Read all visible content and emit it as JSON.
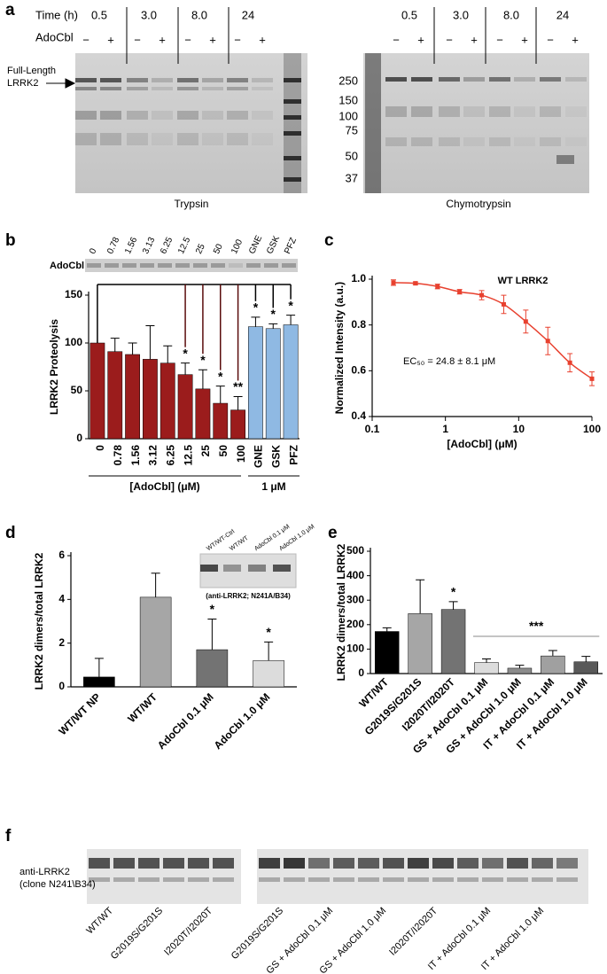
{
  "figure": {
    "panel_labels": [
      "a",
      "b",
      "c",
      "d",
      "e",
      "f"
    ],
    "gel_a": {
      "time_label": "Time (h)",
      "adocbl_label": "AdoCbl",
      "times": [
        "0.5",
        "3.0",
        "8.0",
        "24"
      ],
      "signs": [
        "−",
        "+"
      ],
      "full_length": [
        "Full-Length",
        "LRRK2"
      ],
      "markers": [
        "250",
        "150",
        "100",
        "75",
        "50",
        "37"
      ],
      "enzymes": [
        "Trypsin",
        "Chymotrypsin"
      ]
    },
    "blot_f": {
      "antibody": [
        "anti-LRRK2",
        "(clone N241\\B34)"
      ],
      "left_lanes": [
        "WT/WT",
        "G2019S/G201S",
        "I2020T/I2020T"
      ],
      "right_lanes": [
        "G2019S/G201S",
        "GS + AdoCbl 0.1 μM",
        "GS + AdoCbl 1.0 μM",
        "I2020T/I2020T",
        "IT + AdoCbl 0.1 μM",
        "IT + AdoCbl 1.0 μM"
      ]
    }
  },
  "chart_data": [
    {
      "type": "bar",
      "ylabel": "LRRK2 Proteolysis",
      "categories": [
        "0",
        "0.78",
        "1.56",
        "3.12",
        "6.25",
        "12.5",
        "25",
        "50",
        "100",
        "GNE",
        "GSK",
        "PFZ"
      ],
      "values": [
        100,
        91,
        88,
        83,
        79,
        67,
        52,
        37,
        30,
        117,
        115,
        119
      ],
      "errors": [
        null,
        14,
        12,
        35,
        18,
        12,
        20,
        18,
        14,
        10,
        5,
        10
      ],
      "colors": [
        "#9b1c1c",
        "#9b1c1c",
        "#9b1c1c",
        "#9b1c1c",
        "#9b1c1c",
        "#9b1c1c",
        "#9b1c1c",
        "#9b1c1c",
        "#9b1c1c",
        "#8fb9e3",
        "#8fb9e3",
        "#8fb9e3"
      ],
      "significance": [
        null,
        null,
        null,
        null,
        null,
        "*",
        "*",
        "*",
        "**",
        "*",
        "*",
        "*"
      ],
      "ylim": [
        0,
        150
      ],
      "yticks": [
        0,
        50,
        100,
        150
      ],
      "gel_label": "AdoCbl",
      "gel_lanes": [
        "0",
        "0.78",
        "1.56",
        "3.13",
        "6.25",
        "12.5",
        "25",
        "50",
        "100",
        "GNE",
        "GSK",
        "PFZ"
      ],
      "group_labels": [
        "[AdoCbl] (μM)",
        "1 μM"
      ]
    },
    {
      "type": "scatter",
      "title": "WT LRRK2",
      "annotation": "EC₅₀ = 24.8 ± 8.1 μM",
      "xlabel": "[AdoCbl] (μM)",
      "ylabel": "Normalized Intensity (a.u.)",
      "x": [
        0.195,
        0.39,
        0.78,
        1.56,
        3.125,
        6.25,
        12.5,
        25,
        50,
        100
      ],
      "y": [
        0.985,
        0.982,
        0.968,
        0.945,
        0.93,
        0.89,
        0.815,
        0.73,
        0.635,
        0.565
      ],
      "errors": [
        0.012,
        0.006,
        0.01,
        0.01,
        0.02,
        0.04,
        0.05,
        0.06,
        0.04,
        0.03
      ],
      "color": "#e8412f",
      "xscale": "log",
      "xlim": [
        0.1,
        100
      ],
      "xticks": [
        0.1,
        1,
        10,
        100
      ],
      "ylim": [
        0.4,
        1
      ],
      "yticks": [
        0.4,
        0.6,
        0.8,
        {
          "value": 1,
          "label": "1.0"
        }
      ]
    },
    {
      "type": "bar",
      "ylabel": "LRRK2 dimers/total LRRK2",
      "categories": [
        "WT/WT NP",
        "WT/WT",
        "AdoCbl 0.1 μM",
        "AdoCbl 1.0 μM"
      ],
      "values": [
        0.45,
        4.1,
        1.7,
        1.2
      ],
      "errors": [
        0.85,
        1.1,
        1.4,
        0.85
      ],
      "colors": [
        "#000000",
        "#a6a6a6",
        "#737373",
        "#dcdcdc"
      ],
      "significance": [
        null,
        null,
        "*",
        "*"
      ],
      "ylim": [
        0,
        6
      ],
      "yticks": [
        0,
        2,
        4,
        6
      ],
      "inset_lanes": [
        "WT/WT-Ctrl",
        "WT/WT",
        "AdoCbl 0.1 μM",
        "AdoCbl 1.0 μM"
      ],
      "inset_caption": "(anti-LRRK2; N241A/B34)"
    },
    {
      "type": "bar",
      "ylabel": "LRRK2 dimers/total LRRK2",
      "categories": [
        "WT/WT",
        "G2019S/G201S",
        "I2020T/I2020T",
        "GS + AdoCbl 0.1 μM",
        "GS + AdoCbl 1.0 μM",
        "IT + AdoCbl 0.1 μM",
        "IT + AdoCbl 1.0 μM"
      ],
      "values": [
        172,
        245,
        262,
        45,
        22,
        72,
        48
      ],
      "errors": [
        15,
        138,
        32,
        15,
        12,
        22,
        22
      ],
      "colors": [
        "#000000",
        "#a6a6a6",
        "#737373",
        "#dcdcdc",
        "#8c8c8c",
        "#a0a0a0",
        "#595959"
      ],
      "significance": [
        null,
        null,
        "*",
        null,
        null,
        null,
        null
      ],
      "group_significance": "***",
      "ylim": [
        0,
        500
      ],
      "yticks": [
        0,
        100,
        200,
        300,
        400,
        500
      ]
    }
  ]
}
